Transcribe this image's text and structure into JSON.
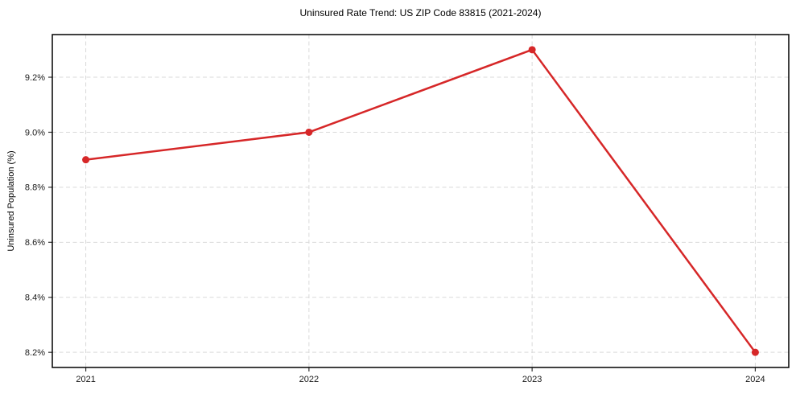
{
  "chart_data": {
    "type": "line",
    "title": "Uninsured Rate Trend: US ZIP Code 83815 (2021-2024)",
    "xlabel": "",
    "ylabel": "Uninsured Population (%)",
    "categories": [
      2021,
      2022,
      2023,
      2024
    ],
    "x_tick_labels": [
      "2021",
      "2022",
      "2023",
      "2024"
    ],
    "series": [
      {
        "name": "Uninsured Rate",
        "values": [
          8.9,
          9.0,
          9.3,
          8.2
        ]
      }
    ],
    "yticks": {
      "values": [
        8.2,
        8.4,
        8.6,
        8.8,
        9.0,
        9.2
      ],
      "labels": [
        "8.2%",
        "8.4%",
        "8.6%",
        "8.8%",
        "9.0%",
        "9.2%"
      ]
    },
    "xlim": [
      2020.85,
      2024.15
    ],
    "ylim": [
      8.145,
      9.355
    ],
    "grid": true,
    "legend": "none",
    "colors": {
      "line": "#d62728",
      "marker": "#d62728",
      "grid": "#d9d9d9",
      "spine": "#000000",
      "tick": "#333333",
      "text": "#1a1a1a"
    }
  }
}
